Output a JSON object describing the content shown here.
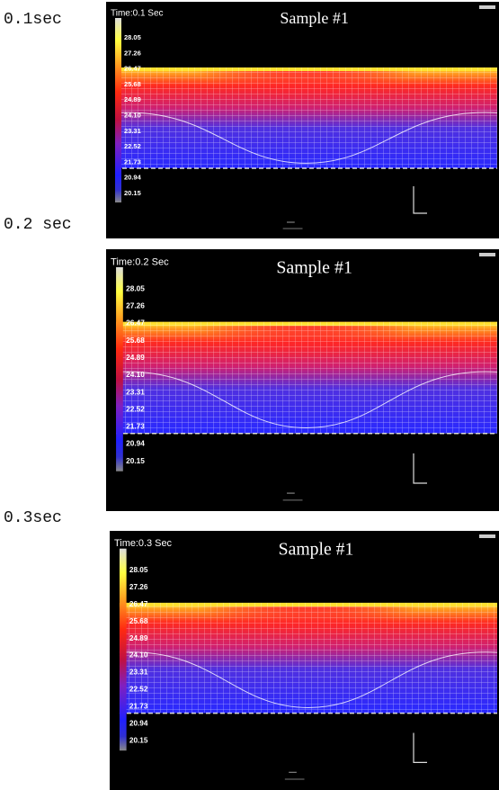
{
  "panels": [
    {
      "label": "0.1sec",
      "time": "Time:0.1 Sec",
      "title": "Sample #1"
    },
    {
      "label": "0.2 sec",
      "time": "Time:0.2 Sec",
      "title": "Sample #1"
    },
    {
      "label": "0.3sec",
      "time": "Time:0.3 Sec",
      "title": "Sample #1"
    }
  ],
  "colorbar_labels": [
    "28.05",
    "27.26",
    "26.47",
    "25.68",
    "24.89",
    "24.10",
    "23.31",
    "22.52",
    "21.73",
    "20.94",
    "20.15"
  ]
}
